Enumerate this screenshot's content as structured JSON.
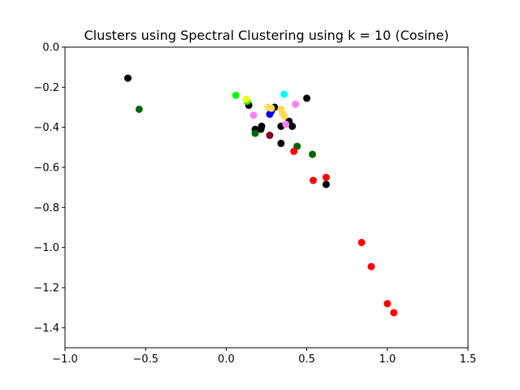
{
  "chart_data": {
    "type": "scatter",
    "title": "Clusters using Spectral Clustering using k = 10 (Cosine)",
    "xlabel": "",
    "ylabel": "",
    "xlim": [
      -1.0,
      1.5
    ],
    "ylim": [
      -1.5,
      0.0
    ],
    "xticks": [
      -1.0,
      -0.5,
      0.0,
      0.5,
      1.0,
      1.5
    ],
    "xtick_labels": [
      "−1.0",
      "−0.5",
      "0.0",
      "0.5",
      "1.0",
      "1.5"
    ],
    "yticks": [
      0.0,
      -0.2,
      -0.4,
      -0.6,
      -0.8,
      -1.0,
      -1.2,
      -1.4
    ],
    "ytick_labels": [
      "0.0",
      "−0.2",
      "−0.4",
      "−0.6",
      "−0.8",
      "−1.0",
      "−1.2",
      "−1.4"
    ],
    "grid": false,
    "series": [
      {
        "color": "#000000",
        "points": [
          [
            -0.61,
            -0.155
          ],
          [
            0.5,
            -0.255
          ],
          [
            0.14,
            -0.29
          ],
          [
            0.18,
            -0.41
          ],
          [
            0.22,
            -0.395
          ],
          [
            0.215,
            -0.41
          ],
          [
            0.34,
            -0.395
          ],
          [
            0.39,
            -0.37
          ],
          [
            0.41,
            -0.395
          ],
          [
            0.34,
            -0.48
          ],
          [
            0.62,
            -0.685
          ],
          [
            0.3,
            -0.3
          ]
        ]
      },
      {
        "color": "#006400",
        "points": [
          [
            -0.54,
            -0.31
          ],
          [
            0.18,
            -0.43
          ],
          [
            0.44,
            -0.495
          ],
          [
            0.535,
            -0.535
          ]
        ]
      },
      {
        "color": "#00ff00",
        "points": [
          [
            0.06,
            -0.24
          ],
          [
            0.13,
            -0.27
          ]
        ]
      },
      {
        "color": "#ffff00",
        "points": [
          [
            0.125,
            -0.26
          ]
        ]
      },
      {
        "color": "#00ffff",
        "points": [
          [
            0.36,
            -0.235
          ]
        ]
      },
      {
        "color": "#ff80ff",
        "points": [
          [
            0.43,
            -0.285
          ],
          [
            0.17,
            -0.34
          ],
          [
            0.37,
            -0.385
          ]
        ]
      },
      {
        "color": "#0000ff",
        "points": [
          [
            0.27,
            -0.335
          ],
          [
            0.28,
            -0.32
          ]
        ]
      },
      {
        "color": "#800020",
        "points": [
          [
            0.27,
            -0.44
          ]
        ]
      },
      {
        "color": "#ffdb58",
        "points": [
          [
            0.26,
            -0.3
          ],
          [
            0.28,
            -0.305
          ],
          [
            0.34,
            -0.31
          ],
          [
            0.35,
            -0.33
          ],
          [
            0.36,
            -0.345
          ]
        ]
      },
      {
        "color": "#ff0000",
        "points": [
          [
            0.42,
            -0.52
          ],
          [
            0.54,
            -0.665
          ],
          [
            0.62,
            -0.65
          ],
          [
            0.84,
            -0.975
          ],
          [
            0.9,
            -1.095
          ],
          [
            1.0,
            -1.28
          ],
          [
            1.04,
            -1.325
          ]
        ]
      }
    ]
  }
}
